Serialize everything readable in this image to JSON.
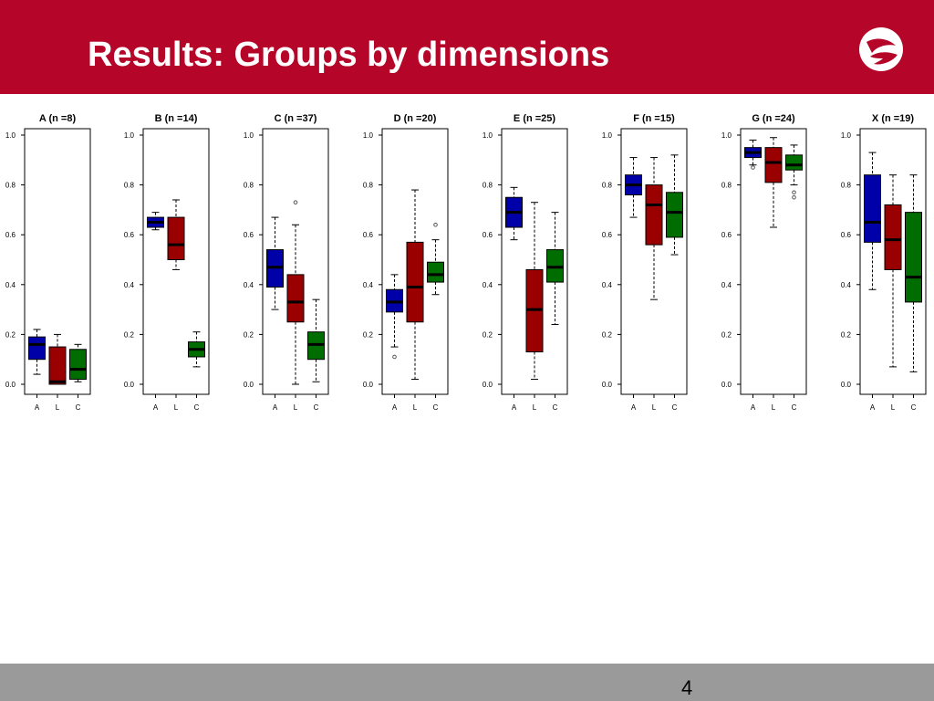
{
  "slide": {
    "title": "Results: Groups by dimensions",
    "page_number": "4",
    "colors": {
      "header": "#b5062a",
      "footer": "#9a9a9a"
    }
  },
  "chart_data": [
    {
      "type": "box",
      "title": "A (n =8)",
      "categories": [
        "A",
        "L",
        "C"
      ],
      "ylim": [
        0,
        1.0
      ],
      "yticks": [
        "0.0",
        "0.2",
        "0.4",
        "0.6",
        "0.8",
        "1.0"
      ],
      "boxes": [
        {
          "min": 0.04,
          "q1": 0.1,
          "median": 0.16,
          "q3": 0.19,
          "max": 0.22,
          "outliers": []
        },
        {
          "min": 0.0,
          "q1": 0.0,
          "median": 0.01,
          "q3": 0.15,
          "max": 0.2,
          "outliers": []
        },
        {
          "min": 0.01,
          "q1": 0.02,
          "median": 0.06,
          "q3": 0.14,
          "max": 0.16,
          "outliers": []
        }
      ]
    },
    {
      "type": "box",
      "title": "B (n =14)",
      "categories": [
        "A",
        "L",
        "C"
      ],
      "ylim": [
        0,
        1.0
      ],
      "yticks": [
        "0.0",
        "0.2",
        "0.4",
        "0.6",
        "0.8",
        "1.0"
      ],
      "boxes": [
        {
          "min": 0.62,
          "q1": 0.63,
          "median": 0.65,
          "q3": 0.67,
          "max": 0.69,
          "outliers": []
        },
        {
          "min": 0.46,
          "q1": 0.5,
          "median": 0.56,
          "q3": 0.67,
          "max": 0.74,
          "outliers": []
        },
        {
          "min": 0.07,
          "q1": 0.11,
          "median": 0.14,
          "q3": 0.17,
          "max": 0.21,
          "outliers": []
        }
      ]
    },
    {
      "type": "box",
      "title": "C (n =37)",
      "categories": [
        "A",
        "L",
        "C"
      ],
      "ylim": [
        0,
        1.0
      ],
      "yticks": [
        "0.0",
        "0.2",
        "0.4",
        "0.6",
        "0.8",
        "1.0"
      ],
      "boxes": [
        {
          "min": 0.3,
          "q1": 0.39,
          "median": 0.47,
          "q3": 0.54,
          "max": 0.67,
          "outliers": []
        },
        {
          "min": 0.0,
          "q1": 0.25,
          "median": 0.33,
          "q3": 0.44,
          "max": 0.64,
          "outliers": [
            0.73
          ]
        },
        {
          "min": 0.01,
          "q1": 0.1,
          "median": 0.16,
          "q3": 0.21,
          "max": 0.34,
          "outliers": []
        }
      ]
    },
    {
      "type": "box",
      "title": "D (n =20)",
      "categories": [
        "A",
        "L",
        "C"
      ],
      "ylim": [
        0,
        1.0
      ],
      "yticks": [
        "0.0",
        "0.2",
        "0.4",
        "0.6",
        "0.8",
        "1.0"
      ],
      "boxes": [
        {
          "min": 0.15,
          "q1": 0.29,
          "median": 0.33,
          "q3": 0.38,
          "max": 0.44,
          "outliers": [
            0.11
          ]
        },
        {
          "min": 0.02,
          "q1": 0.25,
          "median": 0.39,
          "q3": 0.57,
          "max": 0.78,
          "outliers": []
        },
        {
          "min": 0.36,
          "q1": 0.41,
          "median": 0.44,
          "q3": 0.49,
          "max": 0.58,
          "outliers": [
            0.64
          ]
        }
      ]
    },
    {
      "type": "box",
      "title": "E (n =25)",
      "categories": [
        "A",
        "L",
        "C"
      ],
      "ylim": [
        0,
        1.0
      ],
      "yticks": [
        "0.0",
        "0.2",
        "0.4",
        "0.6",
        "0.8",
        "1.0"
      ],
      "boxes": [
        {
          "min": 0.58,
          "q1": 0.63,
          "median": 0.69,
          "q3": 0.75,
          "max": 0.79,
          "outliers": []
        },
        {
          "min": 0.02,
          "q1": 0.13,
          "median": 0.3,
          "q3": 0.46,
          "max": 0.73,
          "outliers": []
        },
        {
          "min": 0.24,
          "q1": 0.41,
          "median": 0.47,
          "q3": 0.54,
          "max": 0.69,
          "outliers": []
        }
      ]
    },
    {
      "type": "box",
      "title": "F (n =15)",
      "categories": [
        "A",
        "L",
        "C"
      ],
      "ylim": [
        0,
        1.0
      ],
      "yticks": [
        "0.0",
        "0.2",
        "0.4",
        "0.6",
        "0.8",
        "1.0"
      ],
      "boxes": [
        {
          "min": 0.67,
          "q1": 0.76,
          "median": 0.8,
          "q3": 0.84,
          "max": 0.91,
          "outliers": []
        },
        {
          "min": 0.34,
          "q1": 0.56,
          "median": 0.72,
          "q3": 0.8,
          "max": 0.91,
          "outliers": []
        },
        {
          "min": 0.52,
          "q1": 0.59,
          "median": 0.69,
          "q3": 0.77,
          "max": 0.92,
          "outliers": []
        }
      ]
    },
    {
      "type": "box",
      "title": "G (n =24)",
      "categories": [
        "A",
        "L",
        "C"
      ],
      "ylim": [
        0,
        1.0
      ],
      "yticks": [
        "0.0",
        "0.2",
        "0.4",
        "0.6",
        "0.8",
        "1.0"
      ],
      "boxes": [
        {
          "min": 0.88,
          "q1": 0.91,
          "median": 0.93,
          "q3": 0.95,
          "max": 0.98,
          "outliers": [
            0.87
          ]
        },
        {
          "min": 0.63,
          "q1": 0.81,
          "median": 0.89,
          "q3": 0.95,
          "max": 0.99,
          "outliers": []
        },
        {
          "min": 0.8,
          "q1": 0.86,
          "median": 0.88,
          "q3": 0.92,
          "max": 0.96,
          "outliers": [
            0.77,
            0.75
          ]
        }
      ]
    },
    {
      "type": "box",
      "title": "X (n =19)",
      "categories": [
        "A",
        "L",
        "C"
      ],
      "ylim": [
        0,
        1.0
      ],
      "yticks": [
        "0.0",
        "0.2",
        "0.4",
        "0.6",
        "0.8",
        "1.0"
      ],
      "boxes": [
        {
          "min": 0.38,
          "q1": 0.57,
          "median": 0.65,
          "q3": 0.84,
          "max": 0.93,
          "outliers": []
        },
        {
          "min": 0.07,
          "q1": 0.46,
          "median": 0.58,
          "q3": 0.72,
          "max": 0.84,
          "outliers": []
        },
        {
          "min": 0.05,
          "q1": 0.33,
          "median": 0.43,
          "q3": 0.69,
          "max": 0.84,
          "outliers": []
        }
      ]
    }
  ],
  "series_colors": [
    "#0000a8",
    "#9b0000",
    "#006d00"
  ],
  "icons": {
    "logo": "shield-swirl-logo"
  }
}
